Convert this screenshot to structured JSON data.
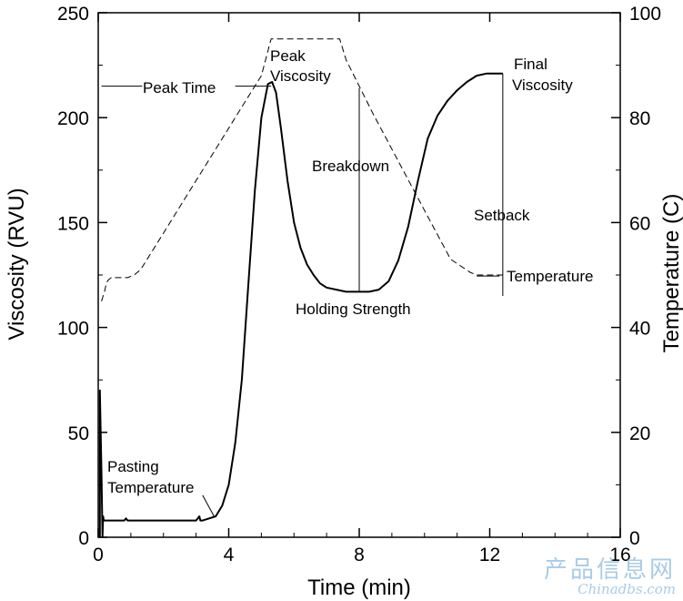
{
  "chart_data": {
    "type": "line",
    "xlabel": "Time (min)",
    "ylabel": "Viscosity (RVU)",
    "y2label": "Temperature (C)",
    "xlim": [
      0,
      16
    ],
    "ylim": [
      0,
      250
    ],
    "y2lim": [
      0,
      100
    ],
    "xticks": [
      "0",
      "4",
      "8",
      "12",
      "16"
    ],
    "xtick_values": [
      0,
      4,
      8,
      12,
      16
    ],
    "yticks": [
      "0",
      "50",
      "100",
      "150",
      "200",
      "250"
    ],
    "ytick_values": [
      0,
      50,
      100,
      150,
      200,
      250
    ],
    "y2ticks": [
      "0",
      "20",
      "40",
      "60",
      "80",
      "100"
    ],
    "y2tick_values": [
      0,
      20,
      40,
      60,
      80,
      100
    ],
    "grid": false,
    "series": [
      {
        "name": "Viscosity",
        "axis": "left",
        "style": "solid",
        "x": [
          0.05,
          0.05,
          0.1,
          0.13,
          0.15,
          0.17,
          0.2,
          0.25,
          0.5,
          0.8,
          0.85,
          0.9,
          1.5,
          2.5,
          3.0,
          3.1,
          3.13,
          3.2,
          3.4,
          3.6,
          3.8,
          4.0,
          4.2,
          4.4,
          4.6,
          4.8,
          5.0,
          5.2,
          5.33,
          5.45,
          5.6,
          5.8,
          6.0,
          6.2,
          6.4,
          6.6,
          6.8,
          7.0,
          7.3,
          7.6,
          7.8,
          8.0,
          8.3,
          8.6,
          8.9,
          9.2,
          9.5,
          9.8,
          10.1,
          10.4,
          10.7,
          11.0,
          11.3,
          11.6,
          11.9,
          12.1,
          12.3,
          12.4
        ],
        "y": [
          0,
          70,
          30,
          0,
          10,
          8,
          8,
          8,
          8,
          8,
          9,
          8,
          8,
          8,
          8,
          10,
          8,
          8,
          9,
          10,
          15,
          25,
          45,
          75,
          120,
          165,
          200,
          216,
          217,
          212,
          195,
          170,
          150,
          138,
          130,
          125,
          121,
          119,
          118,
          117,
          117,
          117,
          117,
          118,
          122,
          132,
          148,
          170,
          190,
          201,
          208,
          213,
          217,
          220,
          221,
          221,
          221,
          221
        ]
      },
      {
        "name": "Temperature",
        "axis": "right",
        "style": "dashed",
        "x": [
          0.1,
          0.15,
          0.2,
          0.25,
          0.3,
          0.4,
          0.6,
          0.9,
          1.1,
          1.3,
          1.5,
          2.0,
          2.5,
          3.0,
          3.5,
          4.0,
          4.5,
          5.0,
          5.3,
          6.0,
          7.0,
          7.4,
          7.6,
          8.0,
          8.4,
          9.0,
          9.6,
          10.2,
          10.8,
          11.4,
          11.6,
          11.8,
          12.0,
          12.4
        ],
        "y": [
          45,
          46,
          47,
          48.5,
          49,
          49.5,
          49.5,
          49.5,
          50,
          51,
          53,
          58,
          63,
          68,
          73,
          78,
          83,
          88,
          95,
          95,
          95,
          95,
          91,
          86,
          81,
          74,
          67,
          60,
          53,
          50.5,
          50,
          50,
          50,
          50
        ]
      }
    ],
    "annotations": {
      "peak_time": "Peak Time",
      "peak_viscosity": [
        "Peak",
        "Viscosity"
      ],
      "breakdown": "Breakdown",
      "final_viscosity": [
        "Final",
        "Viscosity"
      ],
      "setback": "Setback",
      "temperature": "Temperature",
      "holding_strength": "Holding Strength",
      "pasting_temperature": [
        "Pasting",
        "Temperature"
      ]
    }
  },
  "watermark": {
    "line1": "产品信息网",
    "line2": "Chinadbs.com"
  }
}
